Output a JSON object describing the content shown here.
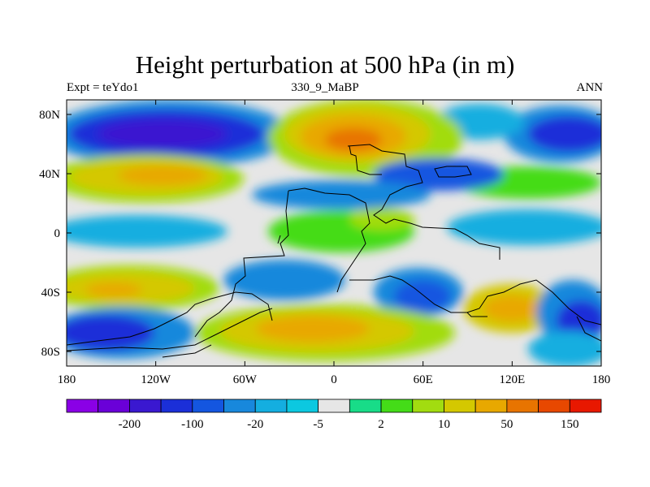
{
  "title": "Height perturbation at 500 hPa (in m)",
  "left_label": "Expt = teYdo1",
  "center_label": "330_9_MaBP",
  "right_label": "ANN",
  "map": {
    "projection": "cylindrical equidistant",
    "lon_range": [
      -180,
      180
    ],
    "lat_range": [
      -90,
      90
    ],
    "x_ticks": [
      "180",
      "120W",
      "60W",
      "0",
      "60E",
      "120E",
      "180"
    ],
    "y_ticks": [
      "80N",
      "40N",
      "0",
      "40S",
      "80S"
    ]
  },
  "colorbar": {
    "labels": [
      "-200",
      "-100",
      "-20",
      "-5",
      "2",
      "10",
      "50",
      "150"
    ],
    "colors": [
      "#8a00e6",
      "#6a00d8",
      "#3a18d0",
      "#1b2fd8",
      "#1456e0",
      "#1888dc",
      "#14aee0",
      "#0cc8e0",
      "#e6e6e6",
      "#18dc88",
      "#44dc18",
      "#a2dc10",
      "#d4c800",
      "#e8a800",
      "#e87400",
      "#e84800",
      "#e81800"
    ]
  }
}
